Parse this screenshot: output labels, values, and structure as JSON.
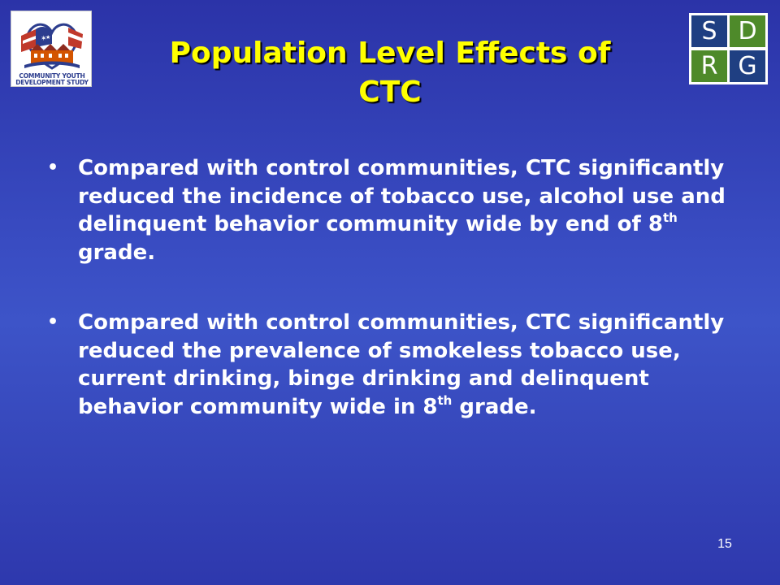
{
  "logos": {
    "left": {
      "caption_line1": "COMMUNITY YOUTH",
      "caption_line2": "DEVELOPMENT STUDY"
    },
    "right": {
      "cells": [
        "S",
        "D",
        "R",
        "G"
      ],
      "colors": {
        "blue": "#1f3f82",
        "green": "#4e8a2a"
      }
    }
  },
  "title": {
    "line1": "Population Level Effects of",
    "line2": "CTC",
    "color": "#ffff00"
  },
  "bullets": [
    {
      "marker": "•",
      "text_before": "Compared with control communities, CTC significantly reduced the incidence of tobacco use, alcohol use and delinquent behavior community wide by end of 8",
      "superscript": "th",
      "text_after": " grade."
    },
    {
      "marker": "•",
      "text_before": "Compared with control communities, CTC significantly reduced the prevalence of smokeless tobacco use, current drinking, binge drinking and delinquent behavior community wide in 8",
      "superscript": "th",
      "text_after": " grade."
    }
  ],
  "page_number": "15"
}
